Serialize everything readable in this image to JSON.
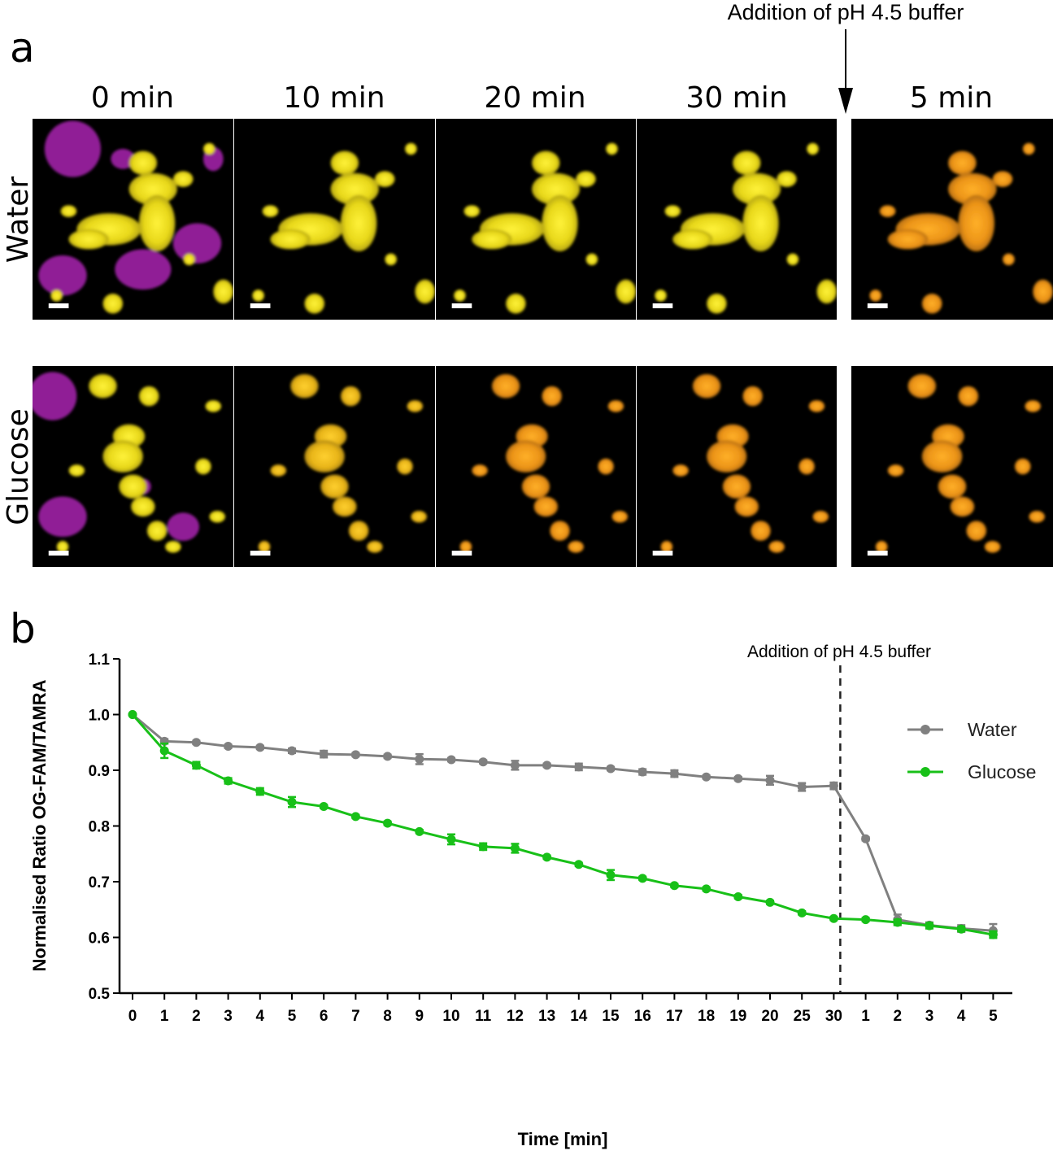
{
  "panel_a": {
    "letter": "a",
    "annotation": "Addition of pH 4.5 buffer",
    "columns": [
      "0 min",
      "10 min",
      "20 min",
      "30 min",
      "5 min"
    ],
    "rows": [
      "Water",
      "Glucose"
    ],
    "colors": {
      "yellow": "#f2e21a",
      "orange": "#f0a020",
      "magenta": "#c028c8",
      "background": "#000000"
    }
  },
  "chart_data": {
    "type": "line",
    "panel_letter": "b",
    "annotation": "Addition of pH 4.5 buffer",
    "xlabel": "Time [min]",
    "ylabel": "Normalised Ratio  OG-FAM/TAMRA",
    "ylim": [
      0.5,
      1.1
    ],
    "yticks": [
      "0.5",
      "0.6",
      "0.7",
      "0.8",
      "0.9",
      "1.0",
      "1.1"
    ],
    "x": [
      "0",
      "1",
      "2",
      "3",
      "4",
      "5",
      "6",
      "7",
      "8",
      "9",
      "10",
      "11",
      "12",
      "13",
      "14",
      "15",
      "16",
      "17",
      "18",
      "19",
      "20",
      "25",
      "30",
      "1",
      "2",
      "3",
      "4",
      "5"
    ],
    "buffer_added_after": "30",
    "legend_position": "right",
    "grid": false,
    "series": [
      {
        "name": "Water",
        "color": "#808080",
        "values": [
          1.0,
          0.952,
          0.95,
          0.943,
          0.941,
          0.935,
          0.929,
          0.928,
          0.925,
          0.92,
          0.919,
          0.915,
          0.909,
          0.909,
          0.906,
          0.903,
          0.897,
          0.894,
          0.888,
          0.885,
          0.882,
          0.87,
          0.872,
          0.777,
          0.632,
          0.622,
          0.616,
          0.612
        ],
        "errors": [
          0,
          0.004,
          0.003,
          0.003,
          0.003,
          0.004,
          0.006,
          0.003,
          0.003,
          0.009,
          0.003,
          0.003,
          0.008,
          0.003,
          0.006,
          0.003,
          0.005,
          0.006,
          0.003,
          0.003,
          0.008,
          0.007,
          0.006,
          0.003,
          0.009,
          0.005,
          0.006,
          0.012
        ]
      },
      {
        "name": "Glucose",
        "color": "#18c018",
        "values": [
          1.0,
          0.935,
          0.909,
          0.881,
          0.862,
          0.843,
          0.835,
          0.817,
          0.805,
          0.79,
          0.776,
          0.763,
          0.76,
          0.744,
          0.731,
          0.712,
          0.706,
          0.693,
          0.687,
          0.673,
          0.663,
          0.644,
          0.634,
          0.632,
          0.627,
          0.621,
          0.615,
          0.605
        ],
        "errors": [
          0,
          0.013,
          0.006,
          0.005,
          0.006,
          0.009,
          0.003,
          0.003,
          0.003,
          0.003,
          0.009,
          0.006,
          0.008,
          0.003,
          0.003,
          0.009,
          0.003,
          0.003,
          0.003,
          0.003,
          0.003,
          0.003,
          0.003,
          0.003,
          0.005,
          0.005,
          0.004,
          0.006
        ]
      }
    ]
  }
}
